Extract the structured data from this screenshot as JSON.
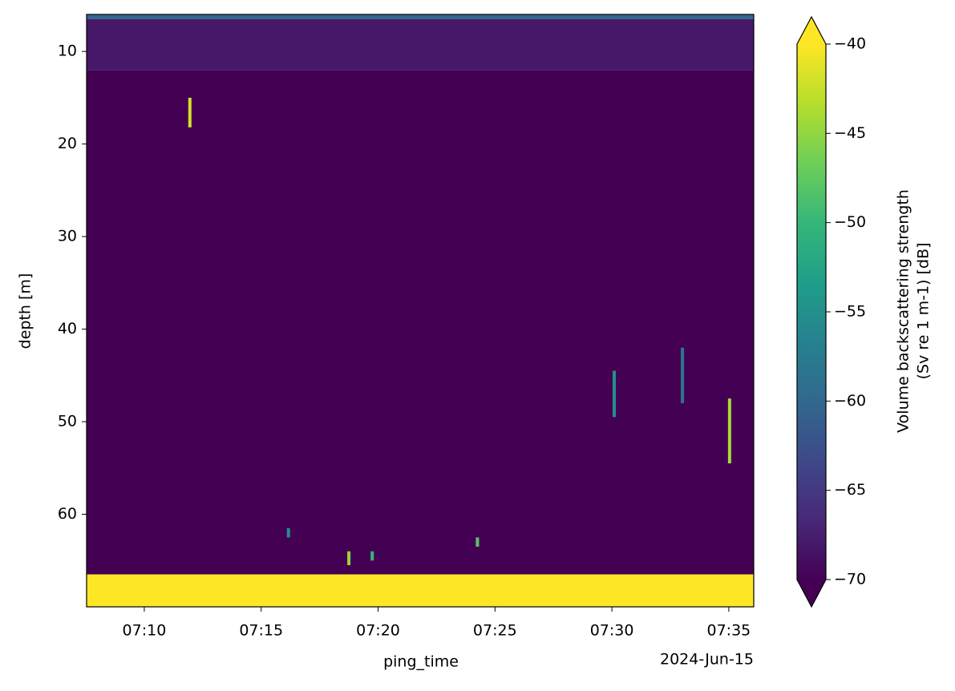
{
  "chart_data": {
    "type": "heatmap",
    "xlabel": "ping_time",
    "ylabel": "depth [m]",
    "x_offset_label": "2024-Jun-15",
    "xlim": [
      "07:07:32",
      "07:36:04"
    ],
    "xticks": [
      {
        "value": "07:10:00",
        "label": "07:10"
      },
      {
        "value": "07:15:00",
        "label": "07:15"
      },
      {
        "value": "07:20:00",
        "label": "07:20"
      },
      {
        "value": "07:25:00",
        "label": "07:25"
      },
      {
        "value": "07:30:00",
        "label": "07:30"
      },
      {
        "value": "07:35:00",
        "label": "07:35"
      }
    ],
    "ylim": [
      6,
      70
    ],
    "y_inverted": true,
    "yticks": [
      10,
      20,
      30,
      40,
      50,
      60
    ],
    "x_edges": [
      "07:07:32",
      "07:36:04"
    ],
    "y_edges": [
      6,
      6.5,
      12,
      66.5,
      70
    ],
    "values": [
      [
        -60
      ],
      [
        -68
      ],
      [
        -70
      ],
      [
        -40
      ]
    ],
    "echoes": [
      {
        "time": "07:11:57",
        "depth": [
          15,
          18.2
        ],
        "value": -42
      },
      {
        "time": "07:30:06",
        "depth": [
          44.5,
          49.5
        ],
        "value": -55
      },
      {
        "time": "07:33:01",
        "depth": [
          42,
          48
        ],
        "value": -58
      },
      {
        "time": "07:35:02",
        "depth": [
          47.5,
          54.5
        ],
        "value": -44
      },
      {
        "time": "07:18:45",
        "depth": [
          64,
          65.5
        ],
        "value": -45
      },
      {
        "time": "07:19:45",
        "depth": [
          64,
          65
        ],
        "value": -50
      },
      {
        "time": "07:24:15",
        "depth": [
          62.5,
          63.5
        ],
        "value": -48
      },
      {
        "time": "07:16:10",
        "depth": [
          61.5,
          62.5
        ],
        "value": -55
      }
    ],
    "colormap": "viridis",
    "vmin": -70,
    "vmax": -40,
    "extend": "both",
    "colorbar_ticks": [
      -70,
      -65,
      -60,
      -55,
      -50,
      -45,
      -40
    ],
    "colorbar_label": [
      "Volume backscattering strength",
      "(Sv re 1 m-1) [dB]"
    ]
  }
}
